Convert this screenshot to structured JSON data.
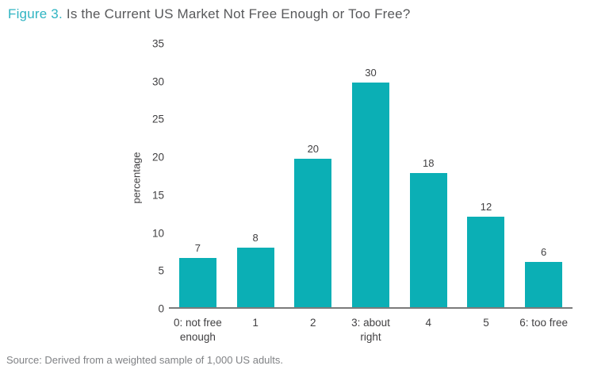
{
  "title": {
    "figure_label": "Figure 3.",
    "text": "Is the Current US Market Not Free Enough or Too Free?"
  },
  "chart_data": {
    "type": "bar",
    "title": "Figure 3. Is the Current US Market Not Free Enough or Too Free?",
    "categories": [
      "0: not free enough",
      "1",
      "2",
      "3: about right",
      "4",
      "5",
      "6: too free"
    ],
    "category_lines": [
      [
        "0: not free",
        "enough"
      ],
      [
        "1"
      ],
      [
        "2"
      ],
      [
        "3: about",
        "right"
      ],
      [
        "4"
      ],
      [
        "5"
      ],
      [
        "6: too free"
      ]
    ],
    "values": [
      7,
      8,
      20,
      30,
      18,
      12,
      6
    ],
    "plotted_values": [
      6.5,
      7.9,
      19.6,
      29.7,
      17.7,
      11.9,
      6.0
    ],
    "xlabel": "",
    "ylabel": "percentage",
    "ylim": [
      0,
      35
    ],
    "yticks": [
      0,
      5,
      10,
      15,
      20,
      25,
      30,
      35
    ],
    "grid": false,
    "legend": false
  },
  "source": "Source: Derived from a weighted sample of 1,000 US adults.",
  "colors": {
    "figure_label": "#2FB4C2",
    "title_text": "#58595B",
    "axis_text": "#414042",
    "source_text": "#808285",
    "bar": "#0BAFB5",
    "baseline": "#7B7B7B"
  }
}
